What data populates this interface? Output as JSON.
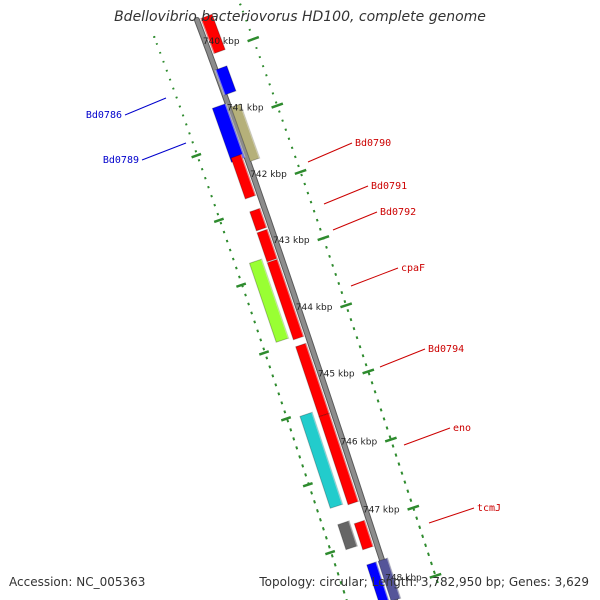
{
  "title": "Bdellovibrio bacteriovorus HD100, complete genome",
  "footer": {
    "accession": "Accession: NC_005363",
    "summary": "Topology: circular; Length: 3,782,950 bp; Genes: 3,629"
  },
  "ticks": [
    {
      "label": "740 kbp"
    },
    {
      "label": "741 kbp"
    },
    {
      "label": "742 kbp"
    },
    {
      "label": "743 kbp"
    },
    {
      "label": "744 kbp"
    },
    {
      "label": "745 kbp"
    },
    {
      "label": "746 kbp"
    },
    {
      "label": "747 kbp"
    },
    {
      "label": "748 kbp"
    }
  ],
  "gene_labels": [
    {
      "name": "Bd0786",
      "color": "#0000cc"
    },
    {
      "name": "Bd0789",
      "color": "#0000cc"
    },
    {
      "name": "Bd0790",
      "color": "#cc0000"
    },
    {
      "name": "Bd0791",
      "color": "#cc0000"
    },
    {
      "name": "Bd0792",
      "color": "#cc0000"
    },
    {
      "name": "cpaF",
      "color": "#cc0000"
    },
    {
      "name": "Bd0794",
      "color": "#cc0000"
    },
    {
      "name": "eno",
      "color": "#cc0000"
    },
    {
      "name": "tcmJ",
      "color": "#cc0000"
    }
  ],
  "colors": {
    "backbone": "#8c8c8c",
    "tick_green": "#2e8b2e",
    "red_gene": "#ff0000",
    "blue_gene": "#0000ff",
    "olive_gene": "#b5b07a",
    "lime_gene": "#99ff33",
    "cyan_gene": "#22cccc",
    "grey_gene": "#666666",
    "slate_gene": "#555599"
  }
}
